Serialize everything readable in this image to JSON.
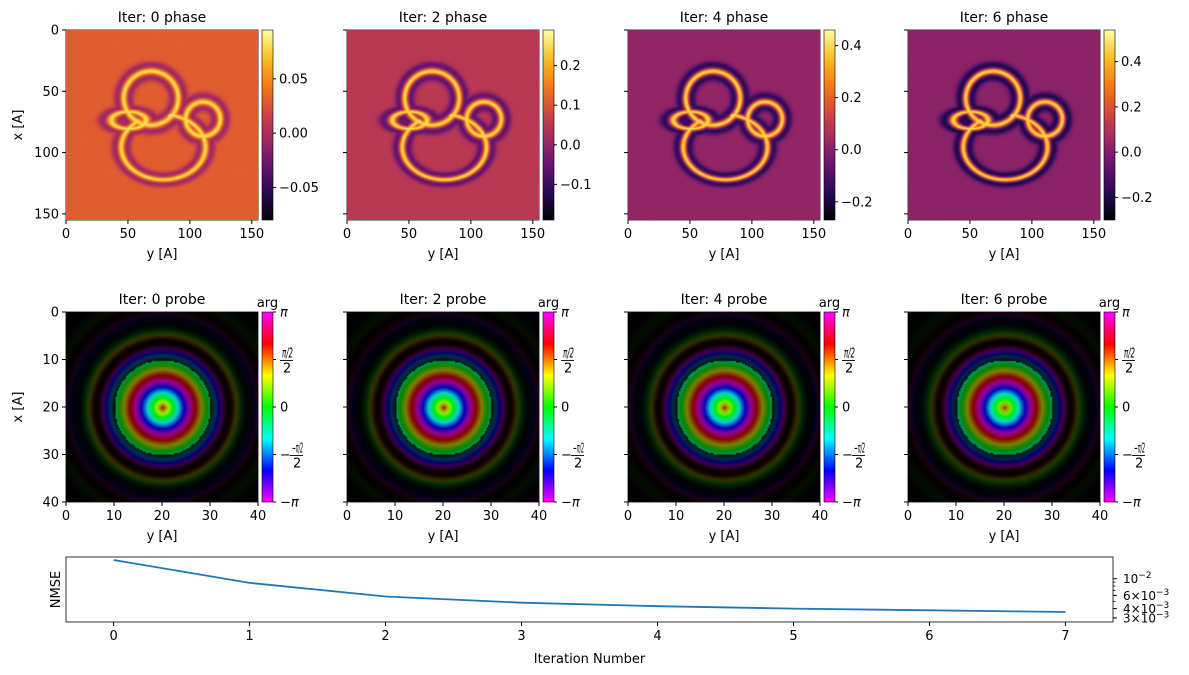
{
  "chart_data": [
    {
      "type": "heatmap",
      "title": "Iter: 0 phase",
      "xlabel": "y [A]",
      "ylabel": "x [A]",
      "xlim": [
        0,
        155
      ],
      "ylim": [
        155,
        0
      ],
      "xticks": [
        "0",
        "50",
        "100",
        "150"
      ],
      "yticks": [
        "0",
        "50",
        "100",
        "150"
      ],
      "colormap": "inferno",
      "colorbar": {
        "range": [
          -0.08,
          0.095
        ],
        "ticks": [
          {
            "v": -0.05,
            "label": "−0.05"
          },
          {
            "v": 0.0,
            "label": "0.00"
          },
          {
            "v": 0.05,
            "label": "0.05"
          }
        ]
      },
      "background_value": 0.03
    },
    {
      "type": "heatmap",
      "title": "Iter: 2 phase",
      "xlabel": "y [A]",
      "ylabel": "",
      "xlim": [
        0,
        155
      ],
      "ylim": [
        155,
        0
      ],
      "xticks": [
        "0",
        "50",
        "100",
        "150"
      ],
      "yticks": [],
      "colormap": "inferno",
      "colorbar": {
        "range": [
          -0.19,
          0.29
        ],
        "ticks": [
          {
            "v": -0.1,
            "label": "−0.1"
          },
          {
            "v": 0.0,
            "label": "0.0"
          },
          {
            "v": 0.1,
            "label": "0.1"
          },
          {
            "v": 0.2,
            "label": "0.2"
          }
        ]
      },
      "background_value": 0.05
    },
    {
      "type": "heatmap",
      "title": "Iter: 4 phase",
      "xlabel": "y [A]",
      "ylabel": "",
      "xlim": [
        0,
        155
      ],
      "ylim": [
        155,
        0
      ],
      "xticks": [
        "0",
        "50",
        "100",
        "150"
      ],
      "yticks": [],
      "colormap": "inferno",
      "colorbar": {
        "range": [
          -0.27,
          0.46
        ],
        "ticks": [
          {
            "v": -0.2,
            "label": "−0.2"
          },
          {
            "v": 0.0,
            "label": "0.0"
          },
          {
            "v": 0.2,
            "label": "0.2"
          },
          {
            "v": 0.4,
            "label": "0.4"
          }
        ]
      },
      "background_value": 0.02
    },
    {
      "type": "heatmap",
      "title": "Iter: 6 phase",
      "xlabel": "y [A]",
      "ylabel": "",
      "xlim": [
        0,
        155
      ],
      "ylim": [
        155,
        0
      ],
      "xticks": [
        "0",
        "50",
        "100",
        "150"
      ],
      "yticks": [],
      "colormap": "inferno",
      "colorbar": {
        "range": [
          -0.3,
          0.54
        ],
        "ticks": [
          {
            "v": -0.2,
            "label": "−0.2"
          },
          {
            "v": 0.0,
            "label": "0.0"
          },
          {
            "v": 0.2,
            "label": "0.2"
          },
          {
            "v": 0.4,
            "label": "0.4"
          }
        ]
      },
      "background_value": 0.02
    },
    {
      "type": "heatmap",
      "title": "Iter: 0 probe",
      "xlabel": "y [A]",
      "ylabel": "x [A]",
      "xlim": [
        0,
        40
      ],
      "ylim": [
        40,
        0
      ],
      "xticks": [
        "0",
        "10",
        "20",
        "30",
        "40"
      ],
      "yticks": [
        "0",
        "10",
        "20",
        "30",
        "40"
      ],
      "colormap": "hsv-phase",
      "colorbar": {
        "label": "arg",
        "ticks": [
          "π",
          "π/2",
          "0",
          "−π/2",
          "−π"
        ]
      }
    },
    {
      "type": "heatmap",
      "title": "Iter: 2 probe",
      "xlabel": "y [A]",
      "ylabel": "",
      "xlim": [
        0,
        40
      ],
      "ylim": [
        40,
        0
      ],
      "xticks": [
        "0",
        "10",
        "20",
        "30",
        "40"
      ],
      "yticks": [],
      "colormap": "hsv-phase",
      "colorbar": {
        "label": "arg",
        "ticks": [
          "π",
          "π/2",
          "0",
          "−π/2",
          "−π"
        ]
      }
    },
    {
      "type": "heatmap",
      "title": "Iter: 4 probe",
      "xlabel": "y [A]",
      "ylabel": "",
      "xlim": [
        0,
        40
      ],
      "ylim": [
        40,
        0
      ],
      "xticks": [
        "0",
        "10",
        "20",
        "30",
        "40"
      ],
      "yticks": [],
      "colormap": "hsv-phase",
      "colorbar": {
        "label": "arg",
        "ticks": [
          "π",
          "π/2",
          "0",
          "−π/2",
          "−π"
        ]
      }
    },
    {
      "type": "heatmap",
      "title": "Iter: 6 probe",
      "xlabel": "y [A]",
      "ylabel": "",
      "xlim": [
        0,
        40
      ],
      "ylim": [
        40,
        0
      ],
      "xticks": [
        "0",
        "10",
        "20",
        "30",
        "40"
      ],
      "yticks": [],
      "colormap": "hsv-phase",
      "colorbar": {
        "label": "arg",
        "ticks": [
          "π",
          "π/2",
          "0",
          "−π/2",
          "−π"
        ]
      }
    },
    {
      "type": "line",
      "title": "",
      "xlabel": "Iteration Number",
      "ylabel": "NMSE",
      "yscale": "log",
      "xlim": [
        -0.35,
        7.35
      ],
      "ylim": [
        0.00265,
        0.0195
      ],
      "xticks": [
        "0",
        "1",
        "2",
        "3",
        "4",
        "5",
        "6",
        "7"
      ],
      "yticks": [
        {
          "v": 0.01,
          "mant": "10",
          "exp": "−2"
        },
        {
          "v": 0.006,
          "mant": "6×10",
          "exp": "−3"
        },
        {
          "v": 0.004,
          "mant": "4×10",
          "exp": "−3"
        },
        {
          "v": 0.003,
          "mant": "3×10",
          "exp": "−3"
        }
      ],
      "yaxis_position": "right",
      "series": [
        {
          "color": "#1f77b4",
          "x": [
            0,
            1,
            2,
            3,
            4,
            5,
            6,
            7
          ],
          "y": [
            0.0178,
            0.0088,
            0.0058,
            0.0048,
            0.0043,
            0.004,
            0.0038,
            0.0036
          ]
        }
      ]
    }
  ]
}
